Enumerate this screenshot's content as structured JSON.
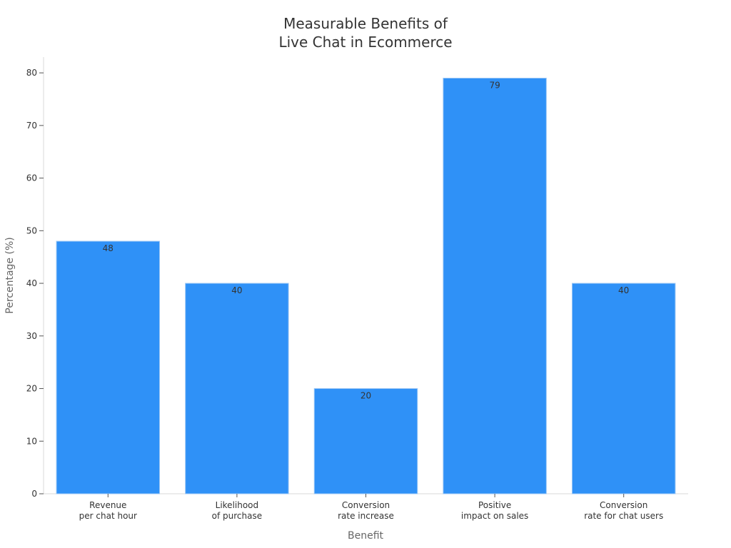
{
  "chart_data": {
    "type": "bar",
    "title": [
      "Measurable Benefits of",
      "Live Chat in Ecommerce"
    ],
    "xlabel": "Benefit",
    "ylabel": "Percentage (%)",
    "ylim": [
      0,
      83
    ],
    "yticks": [
      0,
      10,
      20,
      30,
      40,
      50,
      60,
      70,
      80
    ],
    "categories": [
      [
        "Revenue",
        "per chat hour"
      ],
      [
        "Likelihood",
        "of purchase"
      ],
      [
        "Conversion",
        "rate increase"
      ],
      [
        "Positive",
        "impact on sales"
      ],
      [
        "Conversion",
        "rate for chat users"
      ]
    ],
    "values": [
      48,
      40,
      20,
      79,
      40
    ],
    "bar_color": "#2f91f7",
    "bar_edge_color": "#9cc7f5",
    "grid": false,
    "legend": "none"
  }
}
